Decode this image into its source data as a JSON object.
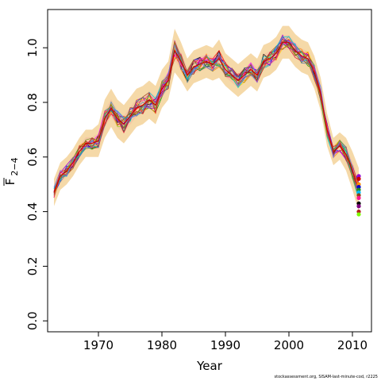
{
  "chart_data": {
    "type": "line",
    "xlabel": "Year",
    "ylabel_main": "F",
    "ylabel_sub": "2−4",
    "xlim": [
      1962,
      2013
    ],
    "ylim": [
      -0.04,
      1.14
    ],
    "xticks": [
      1970,
      1980,
      1990,
      2000,
      2010
    ],
    "yticks": [
      0.0,
      0.2,
      0.4,
      0.6,
      0.8,
      1.0
    ],
    "ytick_labels": [
      "0.0",
      "0.2",
      "0.4",
      "0.6",
      "0.8",
      "1.0"
    ],
    "grid": false,
    "legend": "none",
    "band_color": "#f5d9a8",
    "inner_band_color": "#f3b9a0",
    "central_line_color": "#cc0000",
    "median": {
      "x": [
        1963,
        1964,
        1965,
        1966,
        1967,
        1968,
        1969,
        1970,
        1971,
        1972,
        1973,
        1974,
        1975,
        1976,
        1977,
        1978,
        1979,
        1980,
        1981,
        1982,
        1983,
        1984,
        1985,
        1986,
        1987,
        1988,
        1989,
        1990,
        1991,
        1992,
        1993,
        1994,
        1995,
        1996,
        1997,
        1998,
        1999,
        2000,
        2001,
        2002,
        2003,
        2004,
        2005,
        2006,
        2007,
        2008,
        2009,
        2010,
        2011
      ],
      "y": [
        0.47,
        0.53,
        0.55,
        0.58,
        0.62,
        0.65,
        0.65,
        0.66,
        0.74,
        0.78,
        0.74,
        0.72,
        0.75,
        0.78,
        0.79,
        0.81,
        0.79,
        0.85,
        0.88,
        0.99,
        0.95,
        0.9,
        0.93,
        0.94,
        0.95,
        0.94,
        0.96,
        0.92,
        0.9,
        0.88,
        0.9,
        0.92,
        0.9,
        0.95,
        0.96,
        0.98,
        1.02,
        1.02,
        0.99,
        0.97,
        0.96,
        0.91,
        0.83,
        0.7,
        0.62,
        0.64,
        0.61,
        0.55,
        0.48
      ]
    },
    "band_halfwidth": [
      0.05,
      0.05,
      0.05,
      0.05,
      0.05,
      0.05,
      0.05,
      0.06,
      0.07,
      0.07,
      0.07,
      0.07,
      0.07,
      0.07,
      0.07,
      0.07,
      0.07,
      0.07,
      0.07,
      0.08,
      0.07,
      0.06,
      0.06,
      0.06,
      0.06,
      0.06,
      0.07,
      0.06,
      0.06,
      0.06,
      0.06,
      0.06,
      0.06,
      0.06,
      0.06,
      0.06,
      0.06,
      0.06,
      0.06,
      0.06,
      0.06,
      0.06,
      0.06,
      0.06,
      0.05,
      0.05,
      0.06,
      0.07,
      0.08
    ],
    "endpoints_2011": [
      0.53,
      0.52,
      0.5,
      0.49,
      0.48,
      0.47,
      0.46,
      0.45,
      0.43,
      0.42,
      0.4,
      0.39
    ],
    "endpoint_colors": [
      "#9400d3",
      "#cc0000",
      "#ff8c00",
      "#0000cd",
      "#228b22",
      "#00bfff",
      "#8b4513",
      "#ff1493",
      "#000000",
      "#800080",
      "#b22222",
      "#7cfc00"
    ],
    "series_colors": [
      "#000000",
      "#ff0000",
      "#00aa00",
      "#0000ff",
      "#00cccc",
      "#ff00ff",
      "#ffd700",
      "#808080",
      "#8b0000",
      "#ff8c00",
      "#9400d3",
      "#2e8b57",
      "#4682b4",
      "#ff1493",
      "#6b8e23",
      "#a0522d",
      "#00ced1",
      "#dc143c",
      "#7b68ee",
      "#b8860b"
    ]
  },
  "footer": "stockassessment.org, SISAM-last-minute-cod, r2225"
}
